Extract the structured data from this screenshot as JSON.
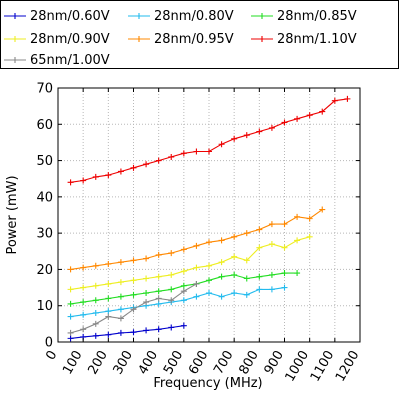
{
  "chart_data": {
    "type": "line",
    "title": "",
    "xlabel": "Frequency (MHz)",
    "ylabel": "Power (mW)",
    "xlim": [
      0,
      1200
    ],
    "ylim": [
      0,
      70
    ],
    "xticks": [
      0,
      100,
      200,
      300,
      400,
      500,
      600,
      700,
      800,
      900,
      1000,
      1100,
      1200
    ],
    "yticks": [
      0,
      10,
      20,
      30,
      40,
      50,
      60,
      70
    ],
    "x_tick_labels": [
      "0",
      "100",
      "200",
      "300",
      "400",
      "500",
      "600",
      "700",
      "800",
      "900",
      "1000",
      "1100",
      "1200"
    ],
    "y_tick_labels": [
      "0",
      "10",
      "20",
      "30",
      "40",
      "50",
      "60",
      "70"
    ],
    "grid": true,
    "legend_position": "top",
    "series": [
      {
        "name": "28nm/0.60V",
        "color": "#0000cc",
        "marker": "plus",
        "x": [
          50,
          100,
          150,
          200,
          250,
          300,
          350,
          400,
          450,
          500
        ],
        "y": [
          1.0,
          1.4,
          1.7,
          2.0,
          2.5,
          2.7,
          3.2,
          3.5,
          4.0,
          4.5
        ]
      },
      {
        "name": "28nm/0.80V",
        "color": "#22bbee",
        "marker": "plus",
        "x": [
          50,
          100,
          150,
          200,
          250,
          300,
          350,
          400,
          450,
          500,
          550,
          600,
          650,
          700,
          750,
          800,
          850,
          900
        ],
        "y": [
          7.0,
          7.5,
          8.0,
          8.5,
          9.0,
          9.5,
          10.0,
          10.5,
          11.0,
          11.5,
          12.5,
          13.5,
          12.5,
          13.5,
          13.0,
          14.5,
          14.5,
          15.0
        ]
      },
      {
        "name": "28nm/0.85V",
        "color": "#22dd22",
        "marker": "plus",
        "x": [
          50,
          100,
          150,
          200,
          250,
          300,
          350,
          400,
          450,
          500,
          550,
          600,
          650,
          700,
          750,
          800,
          850,
          900,
          950
        ],
        "y": [
          10.5,
          11.0,
          11.5,
          12.0,
          12.5,
          13.0,
          13.5,
          14.0,
          14.5,
          15.5,
          16.0,
          17.0,
          18.0,
          18.5,
          17.5,
          18.0,
          18.5,
          19.0,
          19.0
        ]
      },
      {
        "name": "28nm/0.90V",
        "color": "#eeee22",
        "marker": "plus",
        "x": [
          50,
          100,
          150,
          200,
          250,
          300,
          350,
          400,
          450,
          500,
          550,
          600,
          650,
          700,
          750,
          800,
          850,
          900,
          950,
          1000
        ],
        "y": [
          14.5,
          15.0,
          15.5,
          16.0,
          16.5,
          17.0,
          17.5,
          18.0,
          18.5,
          19.5,
          20.5,
          21.0,
          22.0,
          23.5,
          22.5,
          26.0,
          27.0,
          26.0,
          28.0,
          29.0
        ]
      },
      {
        "name": "28nm/0.95V",
        "color": "#ff8800",
        "marker": "plus",
        "x": [
          50,
          100,
          150,
          200,
          250,
          300,
          350,
          400,
          450,
          500,
          550,
          600,
          650,
          700,
          750,
          800,
          850,
          900,
          950,
          1000,
          1050
        ],
        "y": [
          20.0,
          20.5,
          21.0,
          21.5,
          22.0,
          22.5,
          23.0,
          24.0,
          24.5,
          25.5,
          26.5,
          27.5,
          28.0,
          29.0,
          30.0,
          31.0,
          32.5,
          32.5,
          34.5,
          34.0,
          36.5
        ]
      },
      {
        "name": "28nm/1.10V",
        "color": "#ee0000",
        "marker": "plus",
        "x": [
          50,
          100,
          150,
          200,
          250,
          300,
          350,
          400,
          450,
          500,
          550,
          600,
          650,
          700,
          750,
          800,
          850,
          900,
          950,
          1000,
          1050,
          1100,
          1150
        ],
        "y": [
          44.0,
          44.5,
          45.5,
          46.0,
          47.0,
          48.0,
          49.0,
          50.0,
          51.0,
          52.0,
          52.5,
          52.5,
          54.5,
          56.0,
          57.0,
          58.0,
          59.0,
          60.5,
          61.5,
          62.5,
          63.5,
          66.5,
          67.0
        ]
      },
      {
        "name": "65nm/1.00V",
        "color": "#888888",
        "marker": "plus",
        "x": [
          50,
          100,
          150,
          200,
          250,
          300,
          350,
          400,
          450,
          500,
          550
        ],
        "y": [
          2.5,
          3.5,
          5.0,
          7.0,
          6.5,
          9.0,
          11.0,
          12.0,
          11.5,
          14.0,
          16.0
        ]
      }
    ]
  }
}
